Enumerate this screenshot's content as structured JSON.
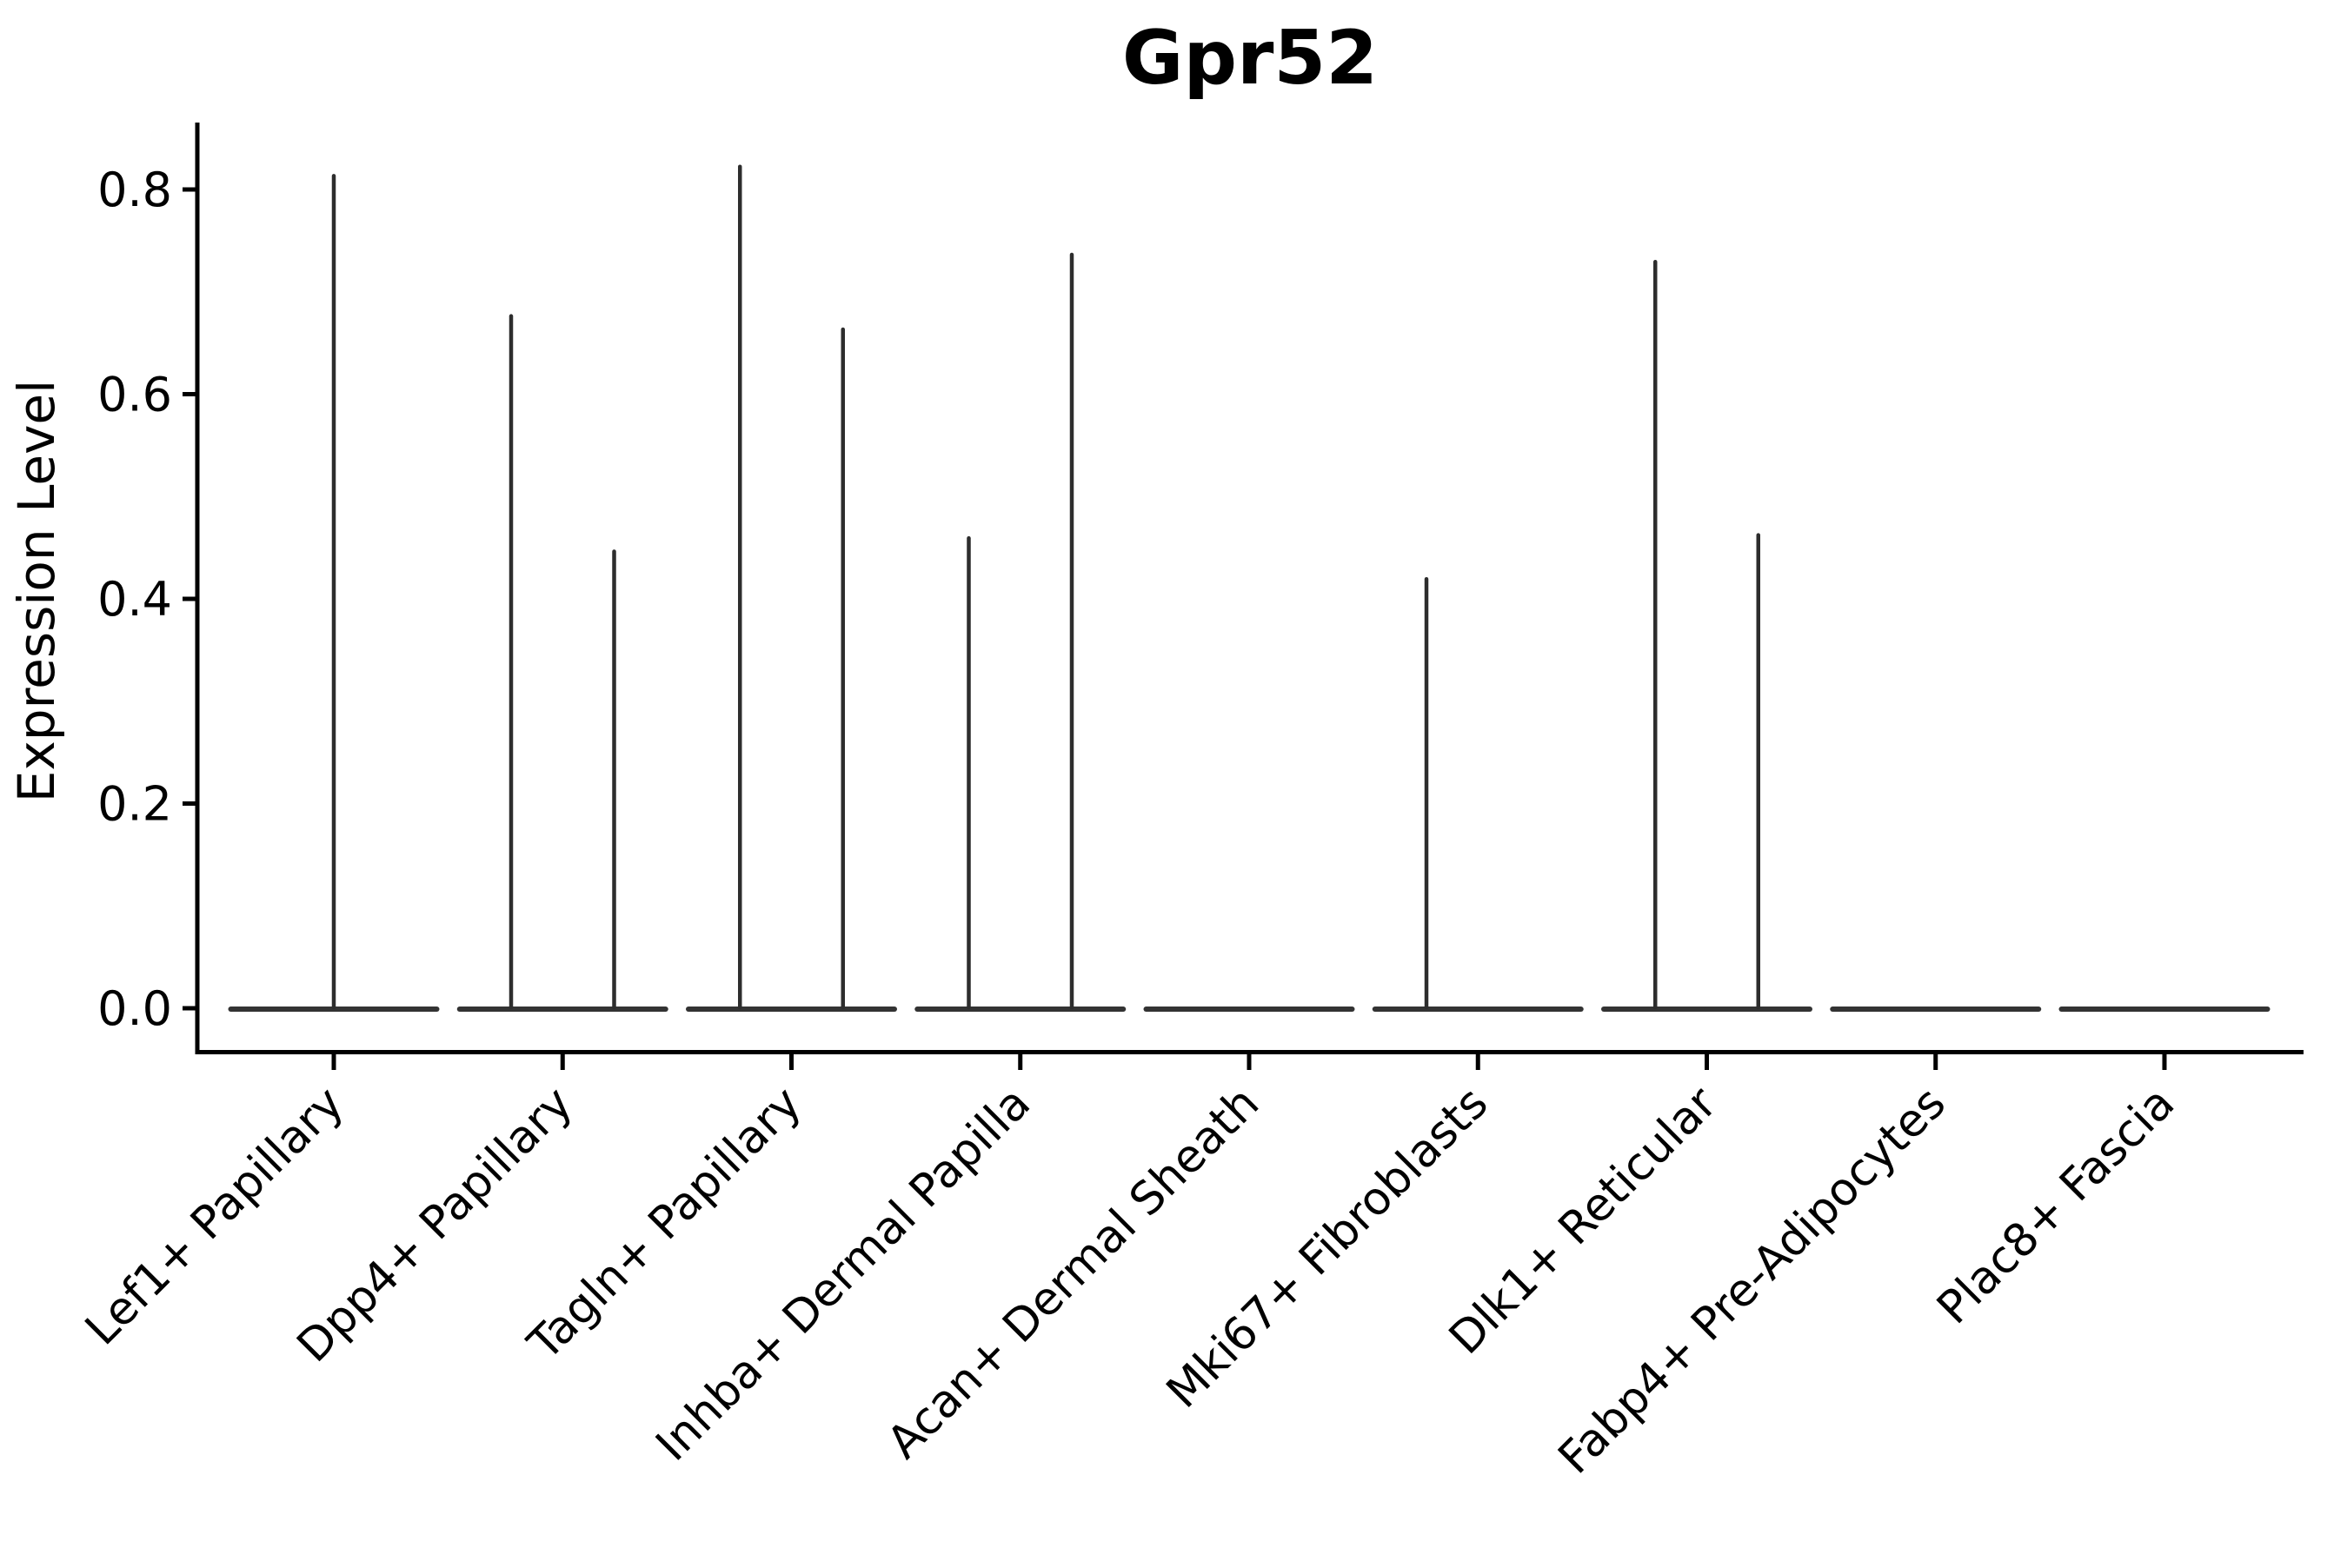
{
  "chart_data": {
    "type": "violin",
    "title": "Gpr52",
    "xlabel": "",
    "ylabel": "Expression Level",
    "ylim": [
      -0.042,
      0.865
    ],
    "grid": false,
    "legend": "none",
    "yticks": [
      {
        "value": 0.0,
        "label": "0.0"
      },
      {
        "value": 0.2,
        "label": "0.2"
      },
      {
        "value": 0.4,
        "label": "0.4"
      },
      {
        "value": 0.6,
        "label": "0.6"
      },
      {
        "value": 0.8,
        "label": "0.8"
      }
    ],
    "categories": [
      "Lef1+ Papillary",
      "Dpp4+ Papillary",
      "Tagln+ Papillary",
      "Inhba+ Dermal Papilla",
      "Acan+ Dermal Sheath",
      "Mki67+ Fibroblasts",
      "Dlk1+ Reticular",
      "Fabp4+ Pre-Adipocytes",
      "Plac8+ Fascia"
    ],
    "groups": [
      {
        "category": "Lef1+ Papillary",
        "violins": [
          {
            "side": "full",
            "max": 0.815
          }
        ]
      },
      {
        "category": "Dpp4+ Papillary",
        "violins": [
          {
            "side": "left",
            "max": 0.678
          },
          {
            "side": "right",
            "max": 0.448
          }
        ]
      },
      {
        "category": "Tagln+ Papillary",
        "violins": [
          {
            "side": "left",
            "max": 0.824
          },
          {
            "side": "right",
            "max": 0.665
          }
        ]
      },
      {
        "category": "Inhba+ Dermal Papilla",
        "violins": [
          {
            "side": "left",
            "max": 0.461
          },
          {
            "side": "right",
            "max": 0.738
          }
        ]
      },
      {
        "category": "Acan+ Dermal Sheath",
        "violins": [
          {
            "side": "full",
            "max": 0
          }
        ]
      },
      {
        "category": "Mki67+ Fibroblasts",
        "violins": [
          {
            "side": "left",
            "max": 0.421
          },
          {
            "side": "right",
            "max": 0
          }
        ]
      },
      {
        "category": "Dlk1+ Reticular",
        "violins": [
          {
            "side": "left",
            "max": 0.731
          },
          {
            "side": "right",
            "max": 0.464
          }
        ]
      },
      {
        "category": "Fabp4+ Pre-Adipocytes",
        "violins": [
          {
            "side": "full",
            "max": 0
          }
        ]
      },
      {
        "category": "Plac8+ Fascia",
        "violins": [
          {
            "side": "full",
            "max": 0
          }
        ]
      }
    ],
    "description": "Violin plot of Gpr52 expression per fibroblast cluster; most mass at 0 with thin density spikes up to the max expressed value. Split groups contain two side-by-side violins.",
    "colors": {
      "violin_line": "#2d2d2d",
      "violin_base": "#333333",
      "axis": "#000000",
      "background": "#ffffff"
    }
  }
}
